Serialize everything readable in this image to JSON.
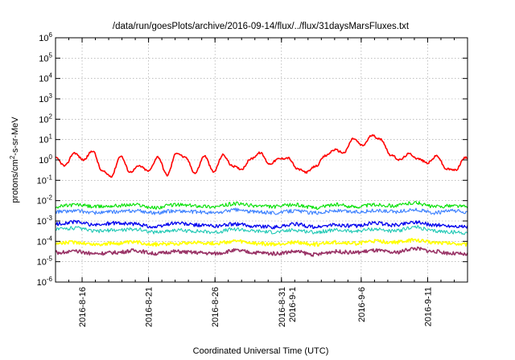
{
  "chart_data": {
    "type": "line",
    "title": "/data/run/goesPlots/archive/2016-09-14/flux/../flux/31daysMarsFluxes.txt",
    "xlabel": "Coordinated Universal Time (UTC)",
    "ylabel": "protons/cm2-s-sr-MeV",
    "ylabel_parts": {
      "base": "protons/cm",
      "sup": "2",
      "rest": "-s-sr-MeV"
    },
    "x_range": [
      "2016-08-14",
      "2016-09-14"
    ],
    "y_scale": "log",
    "y_range_exponents": [
      -6,
      6
    ],
    "y_tick_exponents": [
      -6,
      -5,
      -4,
      -3,
      -2,
      -1,
      0,
      1,
      2,
      3,
      4,
      5,
      6
    ],
    "y_tick_base": "10",
    "x_ticks": [
      {
        "date": "2016-08-16",
        "lines": [
          "2016-8-16"
        ]
      },
      {
        "date": "2016-08-21",
        "lines": [
          "2016-8-21"
        ]
      },
      {
        "date": "2016-08-26",
        "lines": [
          "2016-8-26"
        ]
      },
      {
        "date": "2016-08-31",
        "lines": [
          "2016-8-31",
          "2016-9-1"
        ]
      },
      {
        "date": "2016-09-06",
        "lines": [
          "2016-9-6"
        ]
      },
      {
        "date": "2016-09-11",
        "lines": [
          "2016-9-11"
        ]
      }
    ],
    "grid": true,
    "series": [
      {
        "color": "#ff0000",
        "stroke_width": 1.6,
        "x_days": [
          0.0,
          0.7,
          1.4,
          2.1,
          2.8,
          3.5,
          4.2,
          4.9,
          5.6,
          6.3,
          7.0,
          7.7,
          8.4,
          9.1,
          9.8,
          10.5,
          11.2,
          11.9,
          12.6,
          13.3,
          14.0,
          14.7,
          15.4,
          16.1,
          16.8,
          17.5,
          18.2,
          18.9,
          19.6,
          20.3,
          21.0,
          21.7,
          22.4,
          23.1,
          23.8,
          24.5,
          25.2,
          25.9,
          26.6,
          27.3,
          28.0,
          28.7,
          29.4,
          30.1,
          30.8
        ],
        "log10_values": [
          0.1,
          -0.3,
          0.35,
          0.0,
          0.45,
          -0.55,
          -0.8,
          0.2,
          -0.6,
          -0.3,
          -0.55,
          0.15,
          -0.75,
          0.35,
          0.1,
          -0.65,
          0.2,
          -0.6,
          0.25,
          -0.3,
          -0.45,
          0.05,
          0.35,
          -0.2,
          0.05,
          0.1,
          -0.45,
          -0.6,
          -0.3,
          0.2,
          0.5,
          0.35,
          1.05,
          0.7,
          1.2,
          1.0,
          0.25,
          0.0,
          0.3,
          0.05,
          -0.15,
          0.2,
          -0.45,
          -0.5,
          0.1
        ]
      },
      {
        "color": "#00e000",
        "stroke_width": 1.1,
        "x_days": [
          0.0,
          1.5,
          3.0,
          4.5,
          6.0,
          7.5,
          9.0,
          10.5,
          12.0,
          13.5,
          15.0,
          16.5,
          18.0,
          19.5,
          21.0,
          22.5,
          24.0,
          25.5,
          27.0,
          28.5,
          30.0,
          31.0
        ],
        "log10_values": [
          -2.3,
          -2.2,
          -2.3,
          -2.25,
          -2.2,
          -2.35,
          -2.2,
          -2.25,
          -2.3,
          -2.15,
          -2.25,
          -2.3,
          -2.2,
          -2.35,
          -2.2,
          -2.3,
          -2.2,
          -2.25,
          -2.1,
          -2.3,
          -2.25,
          -2.3
        ]
      },
      {
        "color": "#3a7fff",
        "stroke_width": 1.1,
        "x_days": [
          0.0,
          1.5,
          3.0,
          4.5,
          6.0,
          7.5,
          9.0,
          10.5,
          12.0,
          13.5,
          15.0,
          16.5,
          18.0,
          19.5,
          21.0,
          22.5,
          24.0,
          25.5,
          27.0,
          28.5,
          30.0,
          31.0
        ],
        "log10_values": [
          -2.55,
          -2.5,
          -2.6,
          -2.55,
          -2.5,
          -2.6,
          -2.5,
          -2.55,
          -2.6,
          -2.45,
          -2.55,
          -2.6,
          -2.5,
          -2.6,
          -2.5,
          -2.55,
          -2.5,
          -2.55,
          -2.45,
          -2.6,
          -2.5,
          -2.6
        ]
      },
      {
        "color": "#0000ee",
        "stroke_width": 1.3,
        "x_days": [
          0.0,
          1.5,
          3.0,
          4.5,
          6.0,
          7.5,
          9.0,
          10.5,
          12.0,
          13.5,
          15.0,
          16.5,
          18.0,
          19.5,
          21.0,
          22.5,
          24.0,
          25.5,
          27.0,
          28.5,
          30.0,
          31.0
        ],
        "log10_values": [
          -3.15,
          -3.05,
          -3.2,
          -3.1,
          -3.15,
          -3.3,
          -3.1,
          -3.2,
          -3.25,
          -3.15,
          -3.25,
          -3.3,
          -3.15,
          -3.3,
          -3.2,
          -3.25,
          -3.1,
          -3.2,
          -3.05,
          -3.2,
          -3.25,
          -3.3
        ]
      },
      {
        "color": "#1ec8b4",
        "stroke_width": 1.1,
        "x_days": [
          0.0,
          1.5,
          3.0,
          4.5,
          6.0,
          7.5,
          9.0,
          10.5,
          12.0,
          13.5,
          15.0,
          16.5,
          18.0,
          19.5,
          21.0,
          22.5,
          24.0,
          25.5,
          27.0,
          28.5,
          30.0,
          31.0
        ],
        "log10_values": [
          -3.4,
          -3.35,
          -3.5,
          -3.45,
          -3.4,
          -3.55,
          -3.45,
          -3.5,
          -3.55,
          -3.4,
          -3.5,
          -3.55,
          -3.45,
          -3.55,
          -3.45,
          -3.5,
          -3.4,
          -3.5,
          -3.3,
          -3.5,
          -3.55,
          -3.6
        ]
      },
      {
        "color": "#ffff00",
        "stroke_width": 1.6,
        "x_days": [
          0.0,
          1.5,
          3.0,
          4.5,
          6.0,
          7.5,
          9.0,
          10.5,
          12.0,
          13.5,
          15.0,
          16.5,
          18.0,
          19.5,
          21.0,
          22.5,
          24.0,
          25.5,
          27.0,
          28.5,
          30.0,
          31.0
        ],
        "log10_values": [
          -4.1,
          -4.05,
          -4.15,
          -4.1,
          -4.05,
          -4.15,
          -4.1,
          -4.05,
          -4.1,
          -4.0,
          -4.1,
          -4.15,
          -4.05,
          -4.15,
          -4.05,
          -4.1,
          -4.0,
          -4.05,
          -3.95,
          -4.05,
          -4.1,
          -4.15
        ]
      },
      {
        "color": "#993366",
        "stroke_width": 1.6,
        "x_days": [
          0.0,
          1.5,
          3.0,
          4.5,
          6.0,
          7.5,
          9.0,
          10.5,
          12.0,
          13.5,
          15.0,
          16.5,
          18.0,
          19.5,
          21.0,
          22.5,
          24.0,
          25.5,
          27.0,
          28.5,
          30.0,
          31.0
        ],
        "log10_values": [
          -4.55,
          -4.5,
          -4.6,
          -4.55,
          -4.45,
          -4.6,
          -4.5,
          -4.55,
          -4.6,
          -4.45,
          -4.55,
          -4.6,
          -4.5,
          -4.65,
          -4.5,
          -4.55,
          -4.45,
          -4.55,
          -4.35,
          -4.5,
          -4.6,
          -4.65
        ]
      }
    ]
  }
}
